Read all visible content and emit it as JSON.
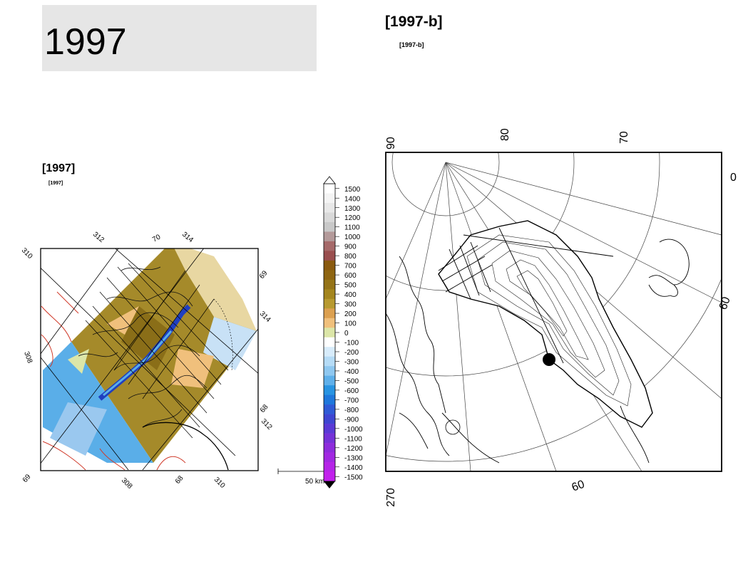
{
  "page": {
    "main_title": "1997",
    "left_map": {
      "header": "[1997]",
      "subheader": "[1997]",
      "grid_labels": {
        "lon_top": [
          "312",
          "70",
          "314"
        ],
        "lat_right": [
          "69",
          "314",
          "68",
          "312"
        ],
        "lon_bottom": [
          "69",
          "308",
          "68",
          "310"
        ],
        "left": [
          "310",
          "308"
        ]
      },
      "scale_bar": "50 km"
    },
    "colorbar": {
      "labels": [
        "1500",
        "1400",
        "1300",
        "1200",
        "1100",
        "1000",
        "900",
        "800",
        "700",
        "600",
        "500",
        "400",
        "300",
        "200",
        "100",
        "0",
        "-100",
        "-200",
        "-300",
        "-400",
        "-500",
        "-600",
        "-700",
        "-800",
        "-900",
        "-1000",
        "-1100",
        "-1200",
        "-1300",
        "-1400",
        "-1500"
      ],
      "colors": [
        "#ffffff",
        "#f4f4f4",
        "#e8e8e8",
        "#d9d9d9",
        "#c9c9c9",
        "#b49a9a",
        "#a66a6a",
        "#9a4f4f",
        "#8a5a0f",
        "#8f6612",
        "#957418",
        "#a4861e",
        "#b89a30",
        "#dca050",
        "#f0c07c",
        "#dce6a8",
        "#ffffff",
        "#d8ecfb",
        "#b6dcf6",
        "#8fc8f0",
        "#5fb0ea",
        "#2894e2",
        "#1f78dc",
        "#2f5bd6",
        "#3f46d2",
        "#5a3ad6",
        "#7532d8",
        "#8e2cdc",
        "#a228e2",
        "#b624e8",
        "#c220ec"
      ]
    },
    "right_map": {
      "header": "[1997-b]",
      "subheader": "[1997-b]",
      "top_labels": [
        "90",
        "80",
        "70"
      ],
      "right_labels": [
        "0",
        "60"
      ],
      "bottom_labels": [
        "270",
        "60"
      ]
    }
  }
}
